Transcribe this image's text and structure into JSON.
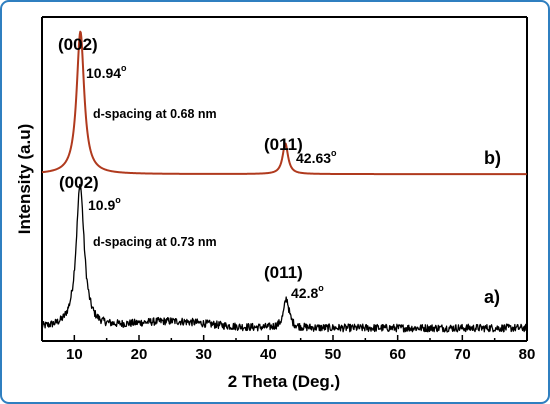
{
  "chart_data": {
    "type": "line",
    "title": "",
    "xlabel": "2 Theta (Deg.)",
    "ylabel": "Intensity (a.u)",
    "xlim": [
      5,
      80
    ],
    "x_ticks": [
      10,
      20,
      30,
      40,
      50,
      60,
      70,
      80
    ],
    "grid": false,
    "legend": "none",
    "colors": {
      "series_a": "#000000",
      "series_b": "#b03a1e",
      "frame": "#2f7fc0"
    },
    "series": [
      {
        "name": "a)",
        "color": "#000000",
        "baseline": 0.04,
        "noise": 0.012,
        "peaks": [
          {
            "x": 10.9,
            "height": 0.44,
            "width": 0.75
          },
          {
            "x": 42.8,
            "height": 0.09,
            "width": 0.5
          }
        ],
        "hump": {
          "x": 25.0,
          "height": 0.02,
          "width": 8.0
        }
      },
      {
        "name": "b)",
        "color": "#b03a1e",
        "baseline": 0.515,
        "noise": 0.0,
        "peaks": [
          {
            "x": 10.94,
            "height": 0.44,
            "width": 0.7
          },
          {
            "x": 42.63,
            "height": 0.095,
            "width": 0.5
          }
        ]
      }
    ],
    "annotations": {
      "b_peak1_hkl": "(002)",
      "b_peak1_angle": "10.94",
      "b_dspacing": "d-spacing at 0.68 nm",
      "b_peak2_hkl": "(011)",
      "b_peak2_angle": "42.63",
      "a_peak1_hkl": "(002)",
      "a_peak1_angle": "10.9",
      "a_dspacing": "d-spacing at 0.73 nm",
      "a_peak2_hkl": "(011)",
      "a_peak2_angle": "42.8",
      "degree_symbol": "o"
    }
  }
}
